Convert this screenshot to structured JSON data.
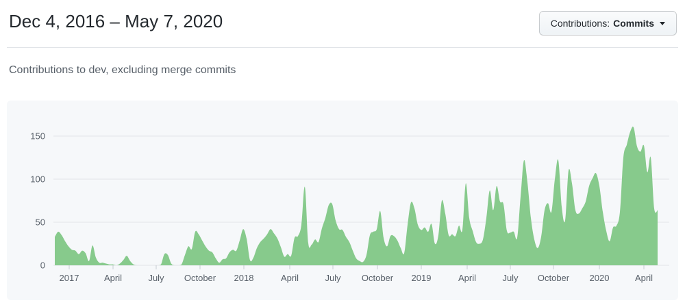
{
  "header": {
    "title": "Dec 4, 2016 – May 7, 2020",
    "contributions_button": {
      "prefix": "Contributions:",
      "value": "Commits"
    }
  },
  "subtitle": "Contributions to dev, excluding merge commits",
  "chart_data": {
    "type": "area",
    "title": "Contributions to dev, excluding merge commits",
    "series_name": "Commits per week",
    "x_start_label": "Dec 4, 2016",
    "x_end_label": "May 7, 2020",
    "x_unit": "week",
    "y_unit": "commits",
    "weekly_values": [
      33,
      39,
      35,
      28,
      22,
      18,
      17,
      13,
      17,
      14,
      5,
      23,
      9,
      3,
      3,
      2,
      1,
      1,
      0,
      2,
      6,
      11,
      5,
      1,
      0,
      0,
      0,
      0,
      0,
      0,
      0,
      1,
      13,
      12,
      2,
      0,
      0,
      1,
      12,
      22,
      19,
      39,
      36,
      29,
      22,
      17,
      15,
      8,
      3,
      7,
      8,
      15,
      18,
      17,
      29,
      42,
      31,
      6,
      9,
      20,
      27,
      31,
      36,
      42,
      37,
      31,
      21,
      10,
      13,
      11,
      32,
      34,
      47,
      91,
      26,
      24,
      30,
      27,
      43,
      55,
      70,
      71,
      52,
      42,
      41,
      33,
      27,
      17,
      8,
      5,
      4,
      12,
      35,
      39,
      42,
      63,
      32,
      22,
      34,
      34,
      29,
      20,
      14,
      47,
      73,
      66,
      47,
      41,
      44,
      39,
      48,
      25,
      35,
      75,
      60,
      35,
      36,
      34,
      46,
      41,
      95,
      55,
      40,
      27,
      25,
      30,
      55,
      87,
      64,
      92,
      74,
      71,
      40,
      38,
      39,
      32,
      80,
      122,
      96,
      55,
      30,
      20,
      33,
      64,
      72,
      62,
      100,
      122,
      68,
      52,
      110,
      95,
      64,
      60,
      66,
      74,
      92,
      101,
      107,
      92,
      62,
      40,
      28,
      44,
      46,
      62,
      125,
      140,
      155,
      160,
      138,
      132,
      139,
      108,
      125,
      66,
      64
    ],
    "x_ticks": [
      {
        "label": "2017",
        "week": 4.2
      },
      {
        "label": "April",
        "week": 17
      },
      {
        "label": "July",
        "week": 29.6
      },
      {
        "label": "October",
        "week": 42.4
      },
      {
        "label": "2018",
        "week": 55.2
      },
      {
        "label": "April",
        "week": 68.6
      },
      {
        "label": "July",
        "week": 81.2
      },
      {
        "label": "October",
        "week": 94.2
      },
      {
        "label": "2019",
        "week": 107
      },
      {
        "label": "April",
        "week": 120.4
      },
      {
        "label": "July",
        "week": 133
      },
      {
        "label": "October",
        "week": 145.6
      },
      {
        "label": "2020",
        "week": 159
      },
      {
        "label": "April",
        "week": 172
      }
    ],
    "y_ticks": [
      0,
      50,
      100,
      150
    ],
    "ylim": [
      0,
      165
    ],
    "grid": true,
    "legend": "none",
    "colors": {
      "area": "#87ca8c",
      "grid": "#e1e4e8",
      "tick": "#c6cbd1",
      "axis_text": "#586069",
      "panel_bg": "#f6f8fa"
    }
  }
}
